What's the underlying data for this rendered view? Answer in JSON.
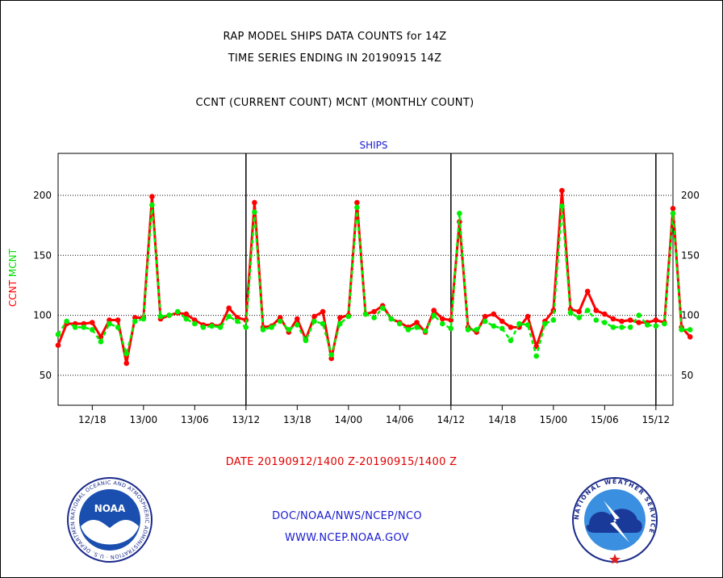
{
  "header": {
    "title_line1": "RAP MODEL SHIPS DATA COUNTS for 14Z",
    "title_line2": "TIME SERIES ENDING IN 20190915 14Z",
    "title_line3": "CCNT (CURRENT COUNT) MCNT (MONTHLY COUNT)"
  },
  "footer": {
    "date_range": "DATE 20190912/1400 Z-20190915/1400 Z",
    "org": "DOC/NOAA/NWS/NCEP/NCO",
    "url": "WWW.NCEP.NOAA.GOV"
  },
  "logos": {
    "noaa_text": "NOAA",
    "noaa_ring": "NATIONAL OCEANIC AND ATMOSPHERIC ADMINISTRATION · U.S. DEPARTMENT OF COMMERCE",
    "nws_ring": "NATIONAL WEATHER SERVICE"
  },
  "chart_data": {
    "type": "line",
    "title": "SHIPS",
    "ylabel_parts": [
      "CCNT",
      "MCNT"
    ],
    "ylabel_colors": [
      "#ff0000",
      "#00dd00"
    ],
    "ylim": [
      25,
      235
    ],
    "yticks": [
      50,
      100,
      150,
      200
    ],
    "xlim": [
      14,
      86
    ],
    "xticks": [
      {
        "t": 18,
        "label": "12/18"
      },
      {
        "t": 24,
        "label": "13/00"
      },
      {
        "t": 30,
        "label": "13/06"
      },
      {
        "t": 36,
        "label": "13/12"
      },
      {
        "t": 42,
        "label": "13/18"
      },
      {
        "t": 48,
        "label": "14/00"
      },
      {
        "t": 54,
        "label": "14/06"
      },
      {
        "t": 60,
        "label": "14/12"
      },
      {
        "t": 66,
        "label": "14/18"
      },
      {
        "t": 72,
        "label": "15/00"
      },
      {
        "t": 78,
        "label": "15/06"
      },
      {
        "t": 84,
        "label": "15/12"
      }
    ],
    "day_dividers": [
      36,
      60,
      84
    ],
    "grid": true,
    "start_t": 14,
    "series": [
      {
        "name": "CCNT",
        "color": "#ff0000",
        "values": [
          75,
          93,
          93,
          93,
          94,
          82,
          96,
          96,
          60,
          98,
          98,
          199,
          97,
          100,
          102,
          101,
          96,
          92,
          92,
          91,
          106,
          98,
          96,
          194,
          90,
          91,
          98,
          86,
          97,
          80,
          99,
          103,
          64,
          98,
          100,
          194,
          101,
          103,
          108,
          97,
          94,
          90,
          94,
          86,
          104,
          97,
          96,
          178,
          90,
          86,
          99,
          101,
          95,
          90,
          90,
          99,
          74,
          95,
          104,
          204,
          105,
          103,
          120,
          104,
          101,
          97,
          95,
          96,
          94,
          94,
          96,
          94,
          189,
          90,
          82
        ]
      },
      {
        "name": "MCNT",
        "color": "#00ee00",
        "values": [
          84,
          95,
          90,
          90,
          88,
          78,
          93,
          90,
          68,
          95,
          97,
          192,
          99,
          100,
          103,
          97,
          93,
          90,
          91,
          90,
          99,
          95,
          90,
          186,
          88,
          90,
          95,
          88,
          92,
          79,
          95,
          93,
          67,
          93,
          99,
          190,
          101,
          98,
          106,
          97,
          93,
          88,
          90,
          87,
          100,
          93,
          89,
          185,
          88,
          88,
          95,
          91,
          89,
          79,
          93,
          92,
          66,
          93,
          96,
          191,
          102,
          98,
          104,
          96,
          94,
          90,
          90,
          90,
          100,
          92,
          91,
          93,
          185,
          88,
          88
        ]
      }
    ]
  }
}
